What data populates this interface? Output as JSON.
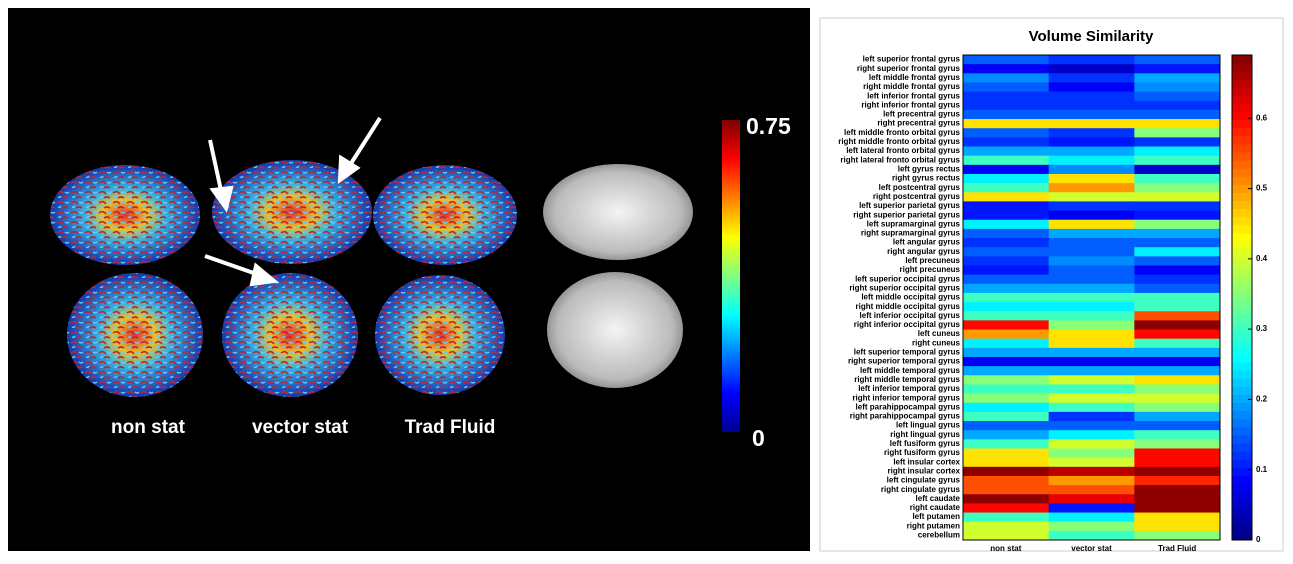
{
  "left_panel": {
    "colorbar_max_label": "0.75",
    "colorbar_min_label": "0",
    "captions": [
      "non stat",
      "vector stat",
      "Trad Fluid"
    ]
  },
  "chart_data": {
    "type": "heatmap",
    "title": "Volume Similarity",
    "x": [
      "non stat",
      "vector stat",
      "Trad Fluid"
    ],
    "categories": [
      "left superior frontal gyrus",
      "right superior frontal gyrus",
      "left middle frontal gyrus",
      "right middle frontal gyrus",
      "left inferior frontal gyrus",
      "right inferior frontal gyrus",
      "left precentral gyrus",
      "right precentral gyrus",
      "left middle fronto orbital gyrus",
      "right middle fronto orbital gyrus",
      "left lateral fronto orbital gyrus",
      "right lateral fronto orbital gyrus",
      "left gyrus rectus",
      "right gyrus rectus",
      "left postcentral gyrus",
      "right postcentral gyrus",
      "left superior parietal gyrus",
      "right superior parietal gyrus",
      "left supramarginal gyrus",
      "right supramarginal gyrus",
      "left angular gyrus",
      "right angular gyrus",
      "left precuneus",
      "right precuneus",
      "left superior occipital gyrus",
      "right superior occipital gyrus",
      "left middle occipital gyrus",
      "right middle occipital gyrus",
      "left inferior occipital gyrus",
      "right inferior occipital gyrus",
      "left cuneus",
      "right cuneus",
      "left superior temporal gyrus",
      "right superior temporal gyrus",
      "left middle temporal gyrus",
      "right middle temporal gyrus",
      "left inferior temporal gyrus",
      "right inferior temporal gyrus",
      "left parahippocampal gyrus",
      "right parahippocampal gyrus",
      "left lingual gyrus",
      "right lingual gyrus",
      "left fusiform gyrus",
      "right fusiform gyrus",
      "left insular cortex",
      "right insular cortex",
      "left cingulate gyrus",
      "right cingulate gyrus",
      "left caudate",
      "right caudate",
      "left putamen",
      "right putamen",
      "cerebellum"
    ],
    "values": [
      [
        0.15,
        0.12,
        0.15
      ],
      [
        0.08,
        0.05,
        0.1
      ],
      [
        0.18,
        0.12,
        0.2
      ],
      [
        0.15,
        0.08,
        0.18
      ],
      [
        0.12,
        0.12,
        0.15
      ],
      [
        0.12,
        0.12,
        0.12
      ],
      [
        0.15,
        0.15,
        0.15
      ],
      [
        0.45,
        0.45,
        0.45
      ],
      [
        0.15,
        0.12,
        0.35
      ],
      [
        0.12,
        0.1,
        0.12
      ],
      [
        0.2,
        0.2,
        0.25
      ],
      [
        0.3,
        0.25,
        0.3
      ],
      [
        0.08,
        0.18,
        0.05
      ],
      [
        0.25,
        0.45,
        0.3
      ],
      [
        0.3,
        0.5,
        0.35
      ],
      [
        0.45,
        0.4,
        0.4
      ],
      [
        0.1,
        0.12,
        0.12
      ],
      [
        0.1,
        0.08,
        0.1
      ],
      [
        0.25,
        0.45,
        0.35
      ],
      [
        0.15,
        0.2,
        0.2
      ],
      [
        0.12,
        0.15,
        0.15
      ],
      [
        0.15,
        0.15,
        0.25
      ],
      [
        0.12,
        0.18,
        0.15
      ],
      [
        0.1,
        0.15,
        0.08
      ],
      [
        0.15,
        0.15,
        0.12
      ],
      [
        0.2,
        0.2,
        0.15
      ],
      [
        0.3,
        0.3,
        0.3
      ],
      [
        0.25,
        0.25,
        0.3
      ],
      [
        0.3,
        0.3,
        0.55
      ],
      [
        0.6,
        0.35,
        0.68
      ],
      [
        0.5,
        0.45,
        0.6
      ],
      [
        0.25,
        0.45,
        0.3
      ],
      [
        0.2,
        0.2,
        0.2
      ],
      [
        0.08,
        0.08,
        0.08
      ],
      [
        0.2,
        0.2,
        0.2
      ],
      [
        0.35,
        0.4,
        0.45
      ],
      [
        0.3,
        0.3,
        0.35
      ],
      [
        0.35,
        0.4,
        0.4
      ],
      [
        0.25,
        0.3,
        0.35
      ],
      [
        0.3,
        0.12,
        0.2
      ],
      [
        0.15,
        0.15,
        0.15
      ],
      [
        0.2,
        0.25,
        0.3
      ],
      [
        0.3,
        0.4,
        0.35
      ],
      [
        0.45,
        0.35,
        0.6
      ],
      [
        0.45,
        0.4,
        0.6
      ],
      [
        0.68,
        0.65,
        0.68
      ],
      [
        0.55,
        0.5,
        0.58
      ],
      [
        0.55,
        0.55,
        0.68
      ],
      [
        0.68,
        0.62,
        0.68
      ],
      [
        0.6,
        0.1,
        0.68
      ],
      [
        0.3,
        0.25,
        0.45
      ],
      [
        0.4,
        0.35,
        0.45
      ],
      [
        0.4,
        0.3,
        0.35
      ]
    ],
    "colormap": "jet",
    "clim": [
      0,
      0.69
    ],
    "cticks": [
      0,
      0.1,
      0.2,
      0.3,
      0.4,
      0.5,
      0.6
    ]
  }
}
